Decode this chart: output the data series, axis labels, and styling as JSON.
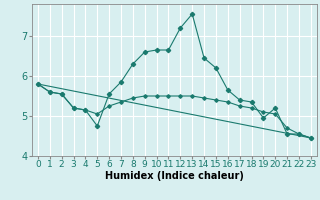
{
  "title": "",
  "xlabel": "Humidex (Indice chaleur)",
  "background_color": "#d8eff0",
  "grid_color": "#ffffff",
  "line_color": "#1a7a6e",
  "xlim": [
    -0.5,
    23.5
  ],
  "ylim": [
    4.0,
    7.8
  ],
  "yticks": [
    4,
    5,
    6,
    7
  ],
  "xticks": [
    0,
    1,
    2,
    3,
    4,
    5,
    6,
    7,
    8,
    9,
    10,
    11,
    12,
    13,
    14,
    15,
    16,
    17,
    18,
    19,
    20,
    21,
    22,
    23
  ],
  "series1_x": [
    0,
    1,
    2,
    3,
    4,
    5,
    6,
    7,
    8,
    9,
    10,
    11,
    12,
    13,
    14,
    15,
    16,
    17,
    18,
    19,
    20,
    21,
    22,
    23
  ],
  "series1_y": [
    5.8,
    5.6,
    5.55,
    5.2,
    5.15,
    4.75,
    5.55,
    5.85,
    6.3,
    6.6,
    6.65,
    6.65,
    7.2,
    7.55,
    6.45,
    6.2,
    5.65,
    5.4,
    5.35,
    4.95,
    5.2,
    4.55,
    4.55,
    4.45
  ],
  "series2_x": [
    0,
    1,
    2,
    3,
    4,
    5,
    6,
    7,
    8,
    9,
    10,
    11,
    12,
    13,
    14,
    15,
    16,
    17,
    18,
    19,
    20,
    21,
    22,
    23
  ],
  "series2_y": [
    5.8,
    5.6,
    5.55,
    5.2,
    5.15,
    5.05,
    5.25,
    5.35,
    5.45,
    5.5,
    5.5,
    5.5,
    5.5,
    5.5,
    5.45,
    5.4,
    5.35,
    5.25,
    5.2,
    5.1,
    5.05,
    4.7,
    4.55,
    4.45
  ],
  "series3_x": [
    0,
    23
  ],
  "series3_y": [
    5.8,
    4.45
  ],
  "label_fontsize": 7,
  "tick_fontsize": 6.5
}
